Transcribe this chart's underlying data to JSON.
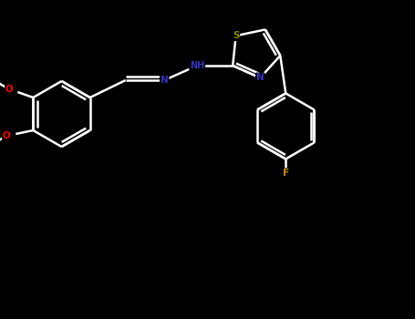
{
  "background_color": "#000000",
  "bond_color": "#ffffff",
  "atom_colors": {
    "O": "#ff0000",
    "N": "#3333bb",
    "S": "#888800",
    "F": "#cc8800",
    "C": "#ffffff",
    "H": "#ffffff"
  },
  "figsize": [
    4.55,
    3.5
  ],
  "dpi": 100,
  "xlim": [
    0,
    9.1
  ],
  "ylim": [
    0,
    7.0
  ]
}
